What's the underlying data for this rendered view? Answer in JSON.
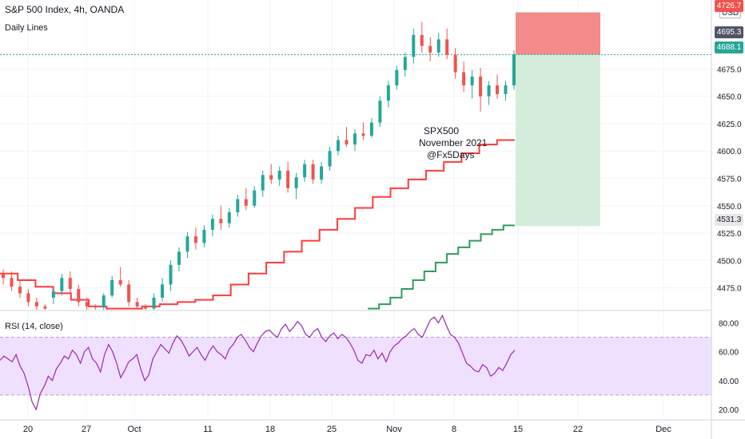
{
  "header": {
    "title": "S&P 500 Index, 4h, OANDA",
    "indicator": "Daily Lines",
    "currency": "USD"
  },
  "rsi_panel": {
    "title": "RSI (14, close)"
  },
  "annotation": {
    "lines": [
      "SPX500",
      "November 2021",
      "@Fx5Days"
    ]
  },
  "price_tags": {
    "top": "4726.7",
    "stop": "4695.3",
    "last": "4688.1",
    "target": "4531.3"
  },
  "colors": {
    "up": "#26a69a",
    "down": "#ef5350",
    "stop_zone": "#f28b8a",
    "target_zone": "#d4edda",
    "rsi_line": "#9c27b0",
    "rsi_band": "#f0e0ff",
    "daily_red": "#ff3b3b",
    "daily_green": "#2e9e5b"
  },
  "chart_data": [
    {
      "type": "candlestick",
      "title": "S&P 500 Index, 4h, OANDA",
      "y_ticks": [
        4475,
        4500,
        4525,
        4550,
        4575,
        4600,
        4625,
        4650,
        4675
      ],
      "y_tick_labels": [
        "4475.0",
        "4500.0",
        "4525.0",
        "4550.0",
        "4575.0",
        "4600.0",
        "4625.0",
        "4650.0",
        "4675.0"
      ],
      "ylim": [
        4455,
        4738
      ],
      "x_tick_labels": [
        "20",
        "27",
        "Oct",
        "11",
        "18",
        "25",
        "Nov",
        "8",
        "15",
        "22",
        "Dec"
      ],
      "position": {
        "entry": 4688.1,
        "stop": 4726.7,
        "target": 4531.3
      },
      "series": [
        {
          "values": [
            [
              4488,
              4492,
              4478,
              4484
            ],
            [
              4484,
              4490,
              4472,
              4476
            ],
            [
              4476,
              4482,
              4466,
              4470
            ],
            [
              4470,
              4474,
              4458,
              4462
            ],
            [
              4462,
              4466,
              4455,
              4458
            ],
            [
              4458,
              4460,
              4455,
              4456
            ],
            [
              4466,
              4474,
              4460,
              4472
            ],
            [
              4472,
              4488,
              4468,
              4484
            ],
            [
              4484,
              4490,
              4470,
              4474
            ],
            [
              4474,
              4478,
              4458,
              4462
            ],
            [
              4462,
              4466,
              4455,
              4458
            ],
            [
              4458,
              4460,
              4455,
              4457
            ],
            [
              4457,
              4470,
              4455,
              4468
            ],
            [
              4468,
              4486,
              4466,
              4482
            ],
            [
              4482,
              4494,
              4476,
              4478
            ],
            [
              4478,
              4482,
              4458,
              4462
            ],
            [
              4462,
              4466,
              4455,
              4458
            ],
            [
              4458,
              4460,
              4455,
              4456
            ],
            [
              4456,
              4470,
              4455,
              4466
            ],
            [
              4466,
              4484,
              4462,
              4478
            ],
            [
              4478,
              4500,
              4472,
              4496
            ],
            [
              4496,
              4512,
              4490,
              4508
            ],
            [
              4508,
              4526,
              4502,
              4522
            ],
            [
              4522,
              4530,
              4510,
              4516
            ],
            [
              4516,
              4532,
              4512,
              4528
            ],
            [
              4528,
              4542,
              4522,
              4538
            ],
            [
              4538,
              4550,
              4528,
              4534
            ],
            [
              4534,
              4548,
              4530,
              4544
            ],
            [
              4544,
              4560,
              4540,
              4556
            ],
            [
              4556,
              4566,
              4546,
              4550
            ],
            [
              4550,
              4568,
              4548,
              4564
            ],
            [
              4564,
              4582,
              4558,
              4578
            ],
            [
              4578,
              4588,
              4570,
              4574
            ],
            [
              4574,
              4586,
              4568,
              4582
            ],
            [
              4582,
              4590,
              4562,
              4566
            ],
            [
              4566,
              4580,
              4556,
              4576
            ],
            [
              4576,
              4592,
              4572,
              4588
            ],
            [
              4588,
              4592,
              4570,
              4574
            ],
            [
              4574,
              4590,
              4570,
              4586
            ],
            [
              4586,
              4604,
              4582,
              4600
            ],
            [
              4600,
              4614,
              4596,
              4610
            ],
            [
              4610,
              4622,
              4604,
              4606
            ],
            [
              4606,
              4620,
              4600,
              4616
            ],
            [
              4616,
              4626,
              4610,
              4614
            ],
            [
              4614,
              4630,
              4612,
              4626
            ],
            [
              4626,
              4650,
              4622,
              4646
            ],
            [
              4646,
              4664,
              4640,
              4660
            ],
            [
              4660,
              4678,
              4656,
              4674
            ],
            [
              4674,
              4690,
              4668,
              4686
            ],
            [
              4686,
              4712,
              4680,
              4706
            ],
            [
              4706,
              4718,
              4690,
              4696
            ],
            [
              4696,
              4704,
              4682,
              4690
            ],
            [
              4690,
              4708,
              4686,
              4702
            ],
            [
              4702,
              4712,
              4684,
              4688
            ],
            [
              4688,
              4694,
              4666,
              4672
            ],
            [
              4672,
              4682,
              4654,
              4660
            ],
            [
              4660,
              4674,
              4648,
              4668
            ],
            [
              4668,
              4676,
              4636,
              4650
            ],
            [
              4650,
              4664,
              4642,
              4660
            ],
            [
              4660,
              4670,
              4648,
              4652
            ],
            [
              4652,
              4664,
              4646,
              4660
            ],
            [
              4660,
              4692,
              4656,
              4688
            ]
          ]
        }
      ],
      "daily_lines": [
        {
          "color": "red",
          "values": [
            4488,
            4482,
            4476,
            4470,
            4464,
            4458,
            4456,
            4456,
            4458,
            4460,
            4462,
            4464,
            4468,
            4478,
            4488,
            4498,
            4508,
            4518,
            4528,
            4538,
            4548,
            4558,
            4566,
            4574,
            4582,
            4590,
            4598,
            4606,
            4610
          ]
        },
        {
          "color": "green",
          "values": [
            4456,
            4460,
            4466,
            4474,
            4482,
            4490,
            4498,
            4506,
            4512,
            4518,
            4524,
            4528,
            4532
          ]
        }
      ]
    },
    {
      "type": "line",
      "title": "RSI (14, close)",
      "y_ticks": [
        20,
        40,
        60,
        80
      ],
      "y_tick_labels": [
        "20.00",
        "40.00",
        "60.00",
        "80.00"
      ],
      "ylim": [
        15,
        88
      ],
      "band": [
        30,
        70
      ],
      "series": [
        {
          "values": [
            54,
            57,
            55,
            53,
            58,
            50,
            45,
            36,
            25,
            20,
            31,
            36,
            43,
            40,
            48,
            52,
            57,
            55,
            61,
            58,
            52,
            60,
            63,
            55,
            52,
            46,
            58,
            65,
            60,
            52,
            42,
            47,
            53,
            55,
            58,
            48,
            40,
            44,
            55,
            60,
            65,
            62,
            59,
            66,
            71,
            68,
            63,
            57,
            60,
            63,
            58,
            54,
            60,
            64,
            60,
            58,
            55,
            62,
            65,
            70,
            72,
            68,
            63,
            60,
            66,
            71,
            74,
            75,
            72,
            70,
            76,
            79,
            74,
            77,
            81,
            78,
            72,
            70,
            74,
            76,
            70,
            67,
            71,
            73,
            69,
            72,
            70,
            66,
            61,
            54,
            52,
            58,
            57,
            61,
            55,
            59,
            53,
            60,
            64,
            66,
            69,
            71,
            74,
            76,
            72,
            70,
            76,
            82,
            84,
            80,
            85,
            78,
            72,
            70,
            66,
            59,
            52,
            50,
            47,
            46,
            51,
            49,
            43,
            45,
            49,
            47,
            52,
            58,
            61
          ]
        }
      ]
    }
  ]
}
